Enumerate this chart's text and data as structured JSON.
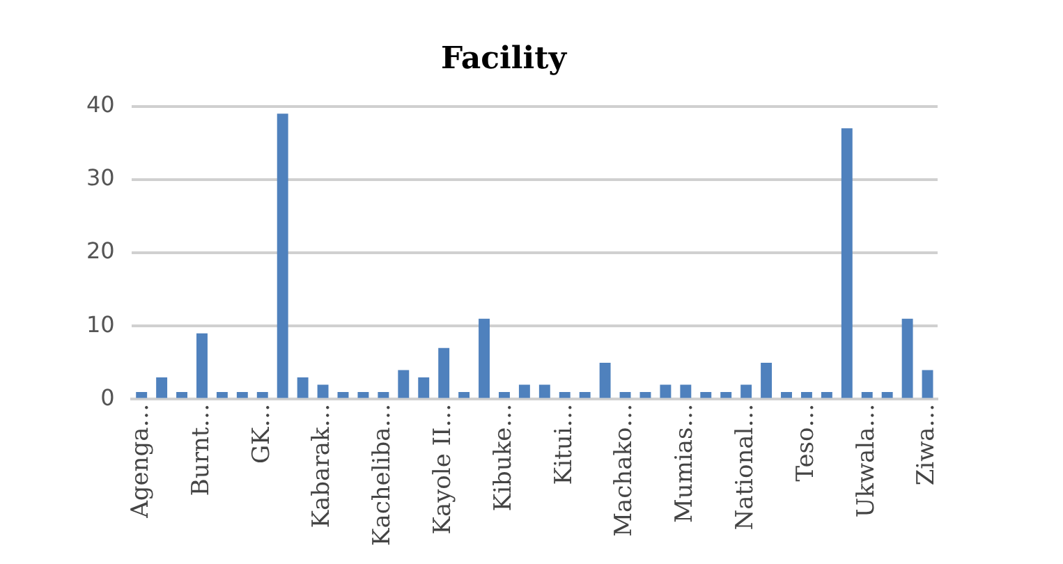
{
  "chart_data": {
    "type": "bar",
    "title": "Facility",
    "categories": [
      "Agenga…",
      null,
      null,
      "Burnt…",
      null,
      null,
      "GK…",
      null,
      null,
      "Kabarak…",
      null,
      null,
      "Kacheliba…",
      null,
      null,
      "Kayole II…",
      null,
      null,
      "Kibuke…",
      null,
      null,
      "Kitui…",
      null,
      null,
      "Machako…",
      null,
      null,
      "Mumias…",
      null,
      null,
      "National…",
      null,
      null,
      "Teso…",
      null,
      null,
      "Ukwala…",
      null,
      null,
      "Ziwa…"
    ],
    "values": [
      1,
      3,
      1,
      9,
      1,
      1,
      1,
      39,
      3,
      2,
      1,
      1,
      1,
      4,
      3,
      7,
      1,
      11,
      1,
      2,
      2,
      1,
      1,
      5,
      1,
      1,
      2,
      2,
      1,
      1,
      2,
      5,
      1,
      1,
      1,
      37,
      1,
      1,
      11,
      4
    ],
    "color": "#4f81bd",
    "ylim": [
      0,
      40
    ],
    "yticks": [
      0,
      10,
      20,
      30,
      40
    ],
    "grid": "y",
    "legend": false
  }
}
